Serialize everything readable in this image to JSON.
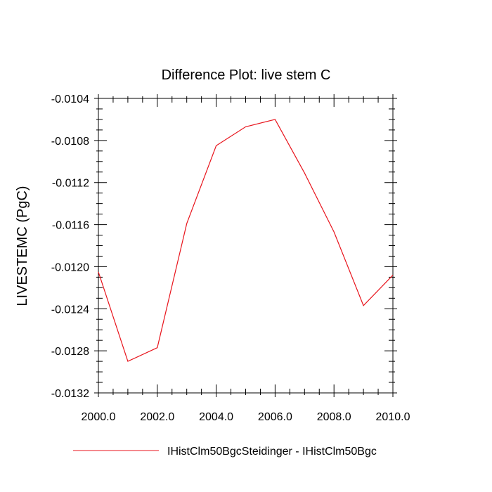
{
  "chart_data": {
    "type": "line",
    "title": "Difference Plot: live stem C",
    "ylabel": "LIVESTEMC  (PgC)",
    "xlabel": "",
    "xlim": [
      2000,
      2010
    ],
    "ylim": [
      -0.0132,
      -0.0104
    ],
    "x_ticks": [
      2000,
      2002,
      2004,
      2006,
      2008,
      2010
    ],
    "x_tick_labels": [
      "2000.0",
      "2002.0",
      "2004.0",
      "2006.0",
      "2008.0",
      "2010.0"
    ],
    "y_ticks": [
      -0.0104,
      -0.0108,
      -0.0112,
      -0.0116,
      -0.012,
      -0.0124,
      -0.0128,
      -0.0132
    ],
    "y_tick_labels": [
      "-0.0104",
      "-0.0108",
      "-0.0112",
      "-0.0116",
      "-0.0120",
      "-0.0124",
      "-0.0128",
      "-0.0132"
    ],
    "grid": false,
    "legend_position": "bottom",
    "series": [
      {
        "name": "IHistClm50BgcSteidinger - IHistClm50Bgc",
        "color": "#e8141c",
        "x": [
          2000,
          2001,
          2002,
          2003,
          2004,
          2005,
          2006,
          2007,
          2008,
          2009,
          2010
        ],
        "values": [
          -0.01205,
          -0.0129,
          -0.01277,
          -0.01159,
          -0.01085,
          -0.01067,
          -0.0106,
          -0.01111,
          -0.01167,
          -0.01237,
          -0.01208
        ]
      }
    ]
  }
}
